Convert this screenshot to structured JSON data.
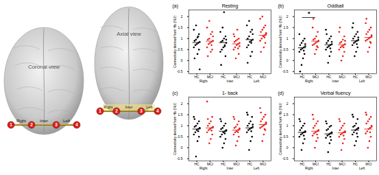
{
  "chart_data": [
    {
      "type": "scatter",
      "panel": "(a)",
      "title": "Resting",
      "ylabel": "Connectivity derived from Hb (NU)",
      "categories": [
        "Right",
        "Inter",
        "Left"
      ],
      "ylim": [
        -0.6,
        2.3
      ],
      "yticks": [
        -0.5,
        0,
        0.5,
        1,
        1.5,
        2
      ],
      "series": [
        {
          "name": "HC",
          "color": "#000000",
          "means": [
            0.82,
            0.82,
            0.95
          ],
          "values": [
            [
              1.4,
              1.2,
              1.05,
              0.95,
              0.9,
              0.85,
              0.8,
              0.75,
              0.7,
              0.6,
              0.5,
              0.3,
              1.6,
              0.1,
              -0.4,
              1.1
            ],
            [
              1.3,
              1.1,
              1.0,
              0.9,
              0.85,
              0.8,
              0.7,
              0.6,
              0.5,
              0.4,
              0.2,
              2.2,
              1.5,
              -0.2,
              0.95,
              0.65
            ],
            [
              1.6,
              1.4,
              1.3,
              1.1,
              1.0,
              0.95,
              0.9,
              0.85,
              0.7,
              0.6,
              0.4,
              0.2,
              1.8,
              -0.1,
              1.2,
              0.8
            ]
          ]
        },
        {
          "name": "MCI",
          "color": "#e8211c",
          "means": [
            0.88,
            0.76,
            1.15
          ],
          "values": [
            [
              1.5,
              1.3,
              1.2,
              1.0,
              0.95,
              0.9,
              0.85,
              0.8,
              0.75,
              0.6,
              0.5,
              0.4,
              1.8,
              0.2,
              1.1,
              0.7
            ],
            [
              1.2,
              1.0,
              0.95,
              0.9,
              0.85,
              0.8,
              0.75,
              0.7,
              0.6,
              0.5,
              0.3,
              1.4,
              0.1,
              1.1,
              0.65,
              0.55
            ],
            [
              1.9,
              1.6,
              1.5,
              1.4,
              1.3,
              1.2,
              1.15,
              1.1,
              1.0,
              0.9,
              0.8,
              0.6,
              2.0,
              0.4,
              1.25,
              1.05
            ]
          ]
        }
      ]
    },
    {
      "type": "scatter",
      "panel": "(b)",
      "title": "Oddball",
      "ylabel": "Connectivity derived from Hb (NU)",
      "categories": [
        "Right",
        "Inter",
        "Left"
      ],
      "ylim": [
        -0.6,
        2.3
      ],
      "yticks": [
        -0.5,
        0,
        0.5,
        1,
        1.5,
        2
      ],
      "significance": [
        {
          "category": "Right",
          "label": "*"
        }
      ],
      "series": [
        {
          "name": "HC",
          "color": "#000000",
          "means": [
            0.58,
            0.72,
            0.9
          ],
          "values": [
            [
              1.2,
              1.0,
              0.9,
              0.8,
              0.7,
              0.65,
              0.6,
              0.55,
              0.5,
              0.4,
              0.3,
              0.1,
              -0.2,
              -0.5,
              0.75,
              0.45
            ],
            [
              1.4,
              1.1,
              1.0,
              0.9,
              0.8,
              0.75,
              0.7,
              0.65,
              0.6,
              0.5,
              0.4,
              0.2,
              -0.1,
              1.2,
              0.85,
              0.55
            ],
            [
              1.5,
              1.3,
              1.2,
              1.1,
              1.0,
              0.95,
              0.9,
              0.85,
              0.8,
              0.7,
              0.6,
              0.4,
              0.2,
              1.7,
              1.05,
              0.75
            ]
          ]
        },
        {
          "name": "MCI",
          "color": "#e8211c",
          "means": [
            0.88,
            0.72,
            1.05
          ],
          "values": [
            [
              1.5,
              1.3,
              1.1,
              1.0,
              0.95,
              0.9,
              0.85,
              0.8,
              0.75,
              0.7,
              0.6,
              0.5,
              0.3,
              1.9,
              0.88,
              0.65
            ],
            [
              1.3,
              1.1,
              0.95,
              0.85,
              0.8,
              0.75,
              0.7,
              0.65,
              0.6,
              0.5,
              0.4,
              0.2,
              0.0,
              1.5,
              0.9,
              0.6
            ],
            [
              1.7,
              1.5,
              1.4,
              1.3,
              1.2,
              1.1,
              1.05,
              1.0,
              0.95,
              0.9,
              0.8,
              0.6,
              0.4,
              1.9,
              1.15,
              0.85
            ]
          ]
        }
      ]
    },
    {
      "type": "scatter",
      "panel": "(c)",
      "title": "1- back",
      "ylabel": "Connectivity derived from Hb (NU)",
      "categories": [
        "Right",
        "Inter",
        "Left"
      ],
      "ylim": [
        -0.6,
        2.3
      ],
      "yticks": [
        -0.5,
        0,
        0.5,
        1,
        1.5,
        2
      ],
      "series": [
        {
          "name": "HC",
          "color": "#000000",
          "means": [
            0.85,
            0.75,
            0.9
          ],
          "values": [
            [
              1.4,
              1.2,
              1.1,
              1.0,
              0.95,
              0.9,
              0.85,
              0.8,
              0.7,
              0.6,
              0.5,
              0.3,
              -0.4,
              1.3,
              0.88,
              0.75
            ],
            [
              1.3,
              1.1,
              1.0,
              0.9,
              0.85,
              0.8,
              0.75,
              0.7,
              0.6,
              0.5,
              0.4,
              0.2,
              0.0,
              1.2,
              0.78,
              0.65
            ],
            [
              1.6,
              1.4,
              1.2,
              1.1,
              1.0,
              0.95,
              0.9,
              0.85,
              0.8,
              0.7,
              0.5,
              0.3,
              -0.1,
              1.5,
              1.05,
              0.75
            ]
          ]
        },
        {
          "name": "MCI",
          "color": "#e8211c",
          "means": [
            0.9,
            0.8,
            1.05
          ],
          "values": [
            [
              2.1,
              1.4,
              1.2,
              1.1,
              1.0,
              0.95,
              0.9,
              0.85,
              0.8,
              0.7,
              0.6,
              0.4,
              0.2,
              1.3,
              0.92,
              0.78
            ],
            [
              1.4,
              1.2,
              1.05,
              0.95,
              0.9,
              0.85,
              0.8,
              0.75,
              0.7,
              0.6,
              0.5,
              0.3,
              0.1,
              1.3,
              0.88,
              0.7
            ],
            [
              1.8,
              1.5,
              1.4,
              1.3,
              1.2,
              1.1,
              1.05,
              1.0,
              0.95,
              0.9,
              0.8,
              0.6,
              0.3,
              1.6,
              1.15,
              0.85
            ]
          ]
        }
      ]
    },
    {
      "type": "scatter",
      "panel": "(d)",
      "title": "Verbal fluency",
      "ylabel": "Connectivity derived from Hb (NU)",
      "categories": [
        "Right",
        "Inter",
        "Left"
      ],
      "ylim": [
        -0.6,
        2.3
      ],
      "yticks": [
        -0.5,
        0,
        0.5,
        1,
        1.5,
        2
      ],
      "series": [
        {
          "name": "HC",
          "color": "#000000",
          "means": [
            0.7,
            0.63,
            0.8
          ],
          "values": [
            [
              1.3,
              1.1,
              1.0,
              0.9,
              0.8,
              0.75,
              0.7,
              0.65,
              0.6,
              0.5,
              0.4,
              0.2,
              -0.1,
              1.2,
              0.72,
              0.55
            ],
            [
              1.2,
              1.0,
              0.95,
              0.85,
              0.8,
              0.7,
              0.65,
              0.6,
              0.55,
              0.45,
              0.35,
              0.2,
              -0.2,
              1.1,
              0.68,
              0.5
            ],
            [
              1.5,
              1.3,
              1.1,
              1.0,
              0.95,
              0.9,
              0.85,
              0.8,
              0.7,
              0.6,
              0.5,
              0.3,
              0.1,
              1.4,
              0.88,
              0.65
            ]
          ]
        },
        {
          "name": "MCI",
          "color": "#e8211c",
          "means": [
            0.75,
            0.68,
            0.85
          ],
          "values": [
            [
              1.5,
              1.2,
              1.1,
              1.0,
              0.9,
              0.8,
              0.75,
              0.7,
              0.65,
              0.55,
              0.45,
              0.3,
              0.0,
              1.3,
              0.78,
              0.6
            ],
            [
              1.3,
              1.1,
              1.0,
              0.9,
              0.8,
              0.75,
              0.7,
              0.65,
              0.6,
              0.5,
              0.4,
              0.2,
              -0.1,
              1.2,
              0.72,
              0.55
            ],
            [
              1.6,
              1.4,
              1.3,
              1.2,
              1.1,
              1.0,
              0.9,
              0.85,
              0.75,
              0.65,
              0.5,
              0.3,
              0.0,
              1.5,
              0.95,
              0.7
            ]
          ]
        }
      ]
    }
  ],
  "diagram": {
    "views": [
      "Coronal view",
      "Axial view"
    ],
    "channels": [
      "1",
      "2",
      "3",
      "4"
    ],
    "regions": [
      "Right",
      "Inter",
      "Left"
    ]
  }
}
